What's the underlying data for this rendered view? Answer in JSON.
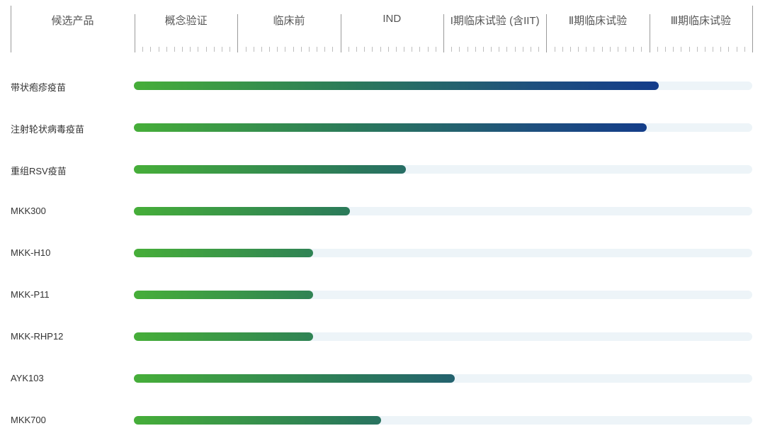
{
  "chart_data": {
    "type": "bar",
    "orientation": "horizontal",
    "header": {
      "candidate_label": "候选产品",
      "stages": [
        "概念验证",
        "临床前",
        "IND",
        "I期临床试验 (含IIT)",
        "Ⅱ期临床试验",
        "Ⅲ期临床试验"
      ]
    },
    "categories": [
      "带状疱疹疫苗",
      "注射轮状病毒疫苗",
      "重组RSV疫苗",
      "MKK300",
      "MKK-H10",
      "MKK-P11",
      "MKK-RHP12",
      "AYK103",
      "MKK700"
    ],
    "values": [
      85,
      83,
      44,
      35,
      29,
      29,
      29,
      52,
      40
    ],
    "unit": "percent of pipeline (6 stages)",
    "xlim": [
      0,
      100
    ],
    "colors": {
      "gradient_start": "#46ae39",
      "gradient_end": "#0b2d94",
      "track": "#edf4f8"
    }
  }
}
